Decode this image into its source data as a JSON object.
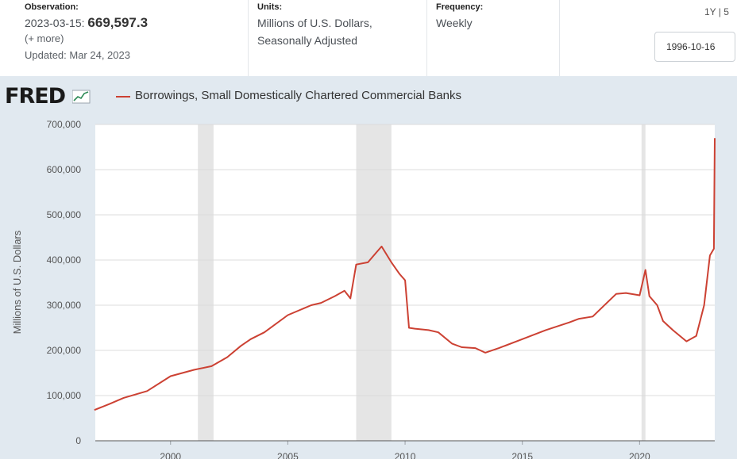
{
  "header": {
    "observation_label": "Observation:",
    "observation_date": "2023-03-15:",
    "observation_value": "669,597.3",
    "more": "(+ more)",
    "updated": "Updated: Mar 24, 2023",
    "units_label": "Units:",
    "units_line1": "Millions of U.S. Dollars,",
    "units_line2": "Seasonally Adjusted",
    "frequency_label": "Frequency:",
    "frequency_value": "Weekly",
    "range_buttons": "1Y | 5",
    "start_date": "1996-10-16"
  },
  "logo": "FRED",
  "colors": {
    "series": "#cc4133",
    "background": "#e1e9f0",
    "recession": "#e5e5e5"
  },
  "chart_data": {
    "type": "line",
    "title": "Borrowings, Small Domestically Chartered Commercial Banks",
    "ylabel": "Millions of U.S. Dollars",
    "xlabel": "",
    "ylim": [
      0,
      700000
    ],
    "yticks": [
      0,
      100000,
      200000,
      300000,
      400000,
      500000,
      600000,
      700000
    ],
    "ytick_labels": [
      "0",
      "100,000",
      "200,000",
      "300,000",
      "400,000",
      "500,000",
      "600,000",
      "700,000"
    ],
    "xticks": [
      2000,
      2005,
      2010,
      2015,
      2020
    ],
    "xtick_labels": [
      "2000",
      "2005",
      "2010",
      "2015",
      "2020"
    ],
    "xlim": [
      "1996-10-16",
      "2023-03-15"
    ],
    "recessions": [
      [
        "2001-03",
        "2001-11"
      ],
      [
        "2007-12",
        "2009-06"
      ],
      [
        "2020-02",
        "2020-04"
      ]
    ],
    "grid": true,
    "series": [
      {
        "name": "Borrowings, Small Domestically Chartered Commercial Banks",
        "x": [
          "1996-10",
          "1997-06",
          "1998-01",
          "1999-01",
          "2000-01",
          "2001-01",
          "2001-10",
          "2002-06",
          "2003-01",
          "2003-06",
          "2004-01",
          "2005-01",
          "2006-01",
          "2006-06",
          "2007-01",
          "2007-06",
          "2007-09",
          "2007-12",
          "2008-06",
          "2008-10",
          "2009-01",
          "2009-06",
          "2009-10",
          "2010-01",
          "2010-03",
          "2010-06",
          "2011-01",
          "2011-06",
          "2012-01",
          "2012-06",
          "2013-01",
          "2013-06",
          "2014-01",
          "2015-01",
          "2016-01",
          "2017-01",
          "2017-06",
          "2018-01",
          "2019-01",
          "2019-06",
          "2020-01",
          "2020-04",
          "2020-06",
          "2020-10",
          "2021-01",
          "2021-06",
          "2022-01",
          "2022-06",
          "2022-10",
          "2023-01",
          "2023-03-01",
          "2023-03-15"
        ],
        "values": [
          68000,
          82000,
          95000,
          110000,
          143000,
          157000,
          165000,
          185000,
          210000,
          225000,
          240000,
          278000,
          300000,
          305000,
          320000,
          332000,
          315000,
          390000,
          395000,
          415000,
          430000,
          395000,
          370000,
          355000,
          250000,
          248000,
          245000,
          240000,
          215000,
          207000,
          205000,
          195000,
          205000,
          225000,
          245000,
          262000,
          270000,
          275000,
          325000,
          327000,
          322000,
          378000,
          320000,
          300000,
          265000,
          245000,
          220000,
          232000,
          300000,
          410000,
          425000,
          669597
        ]
      }
    ]
  }
}
